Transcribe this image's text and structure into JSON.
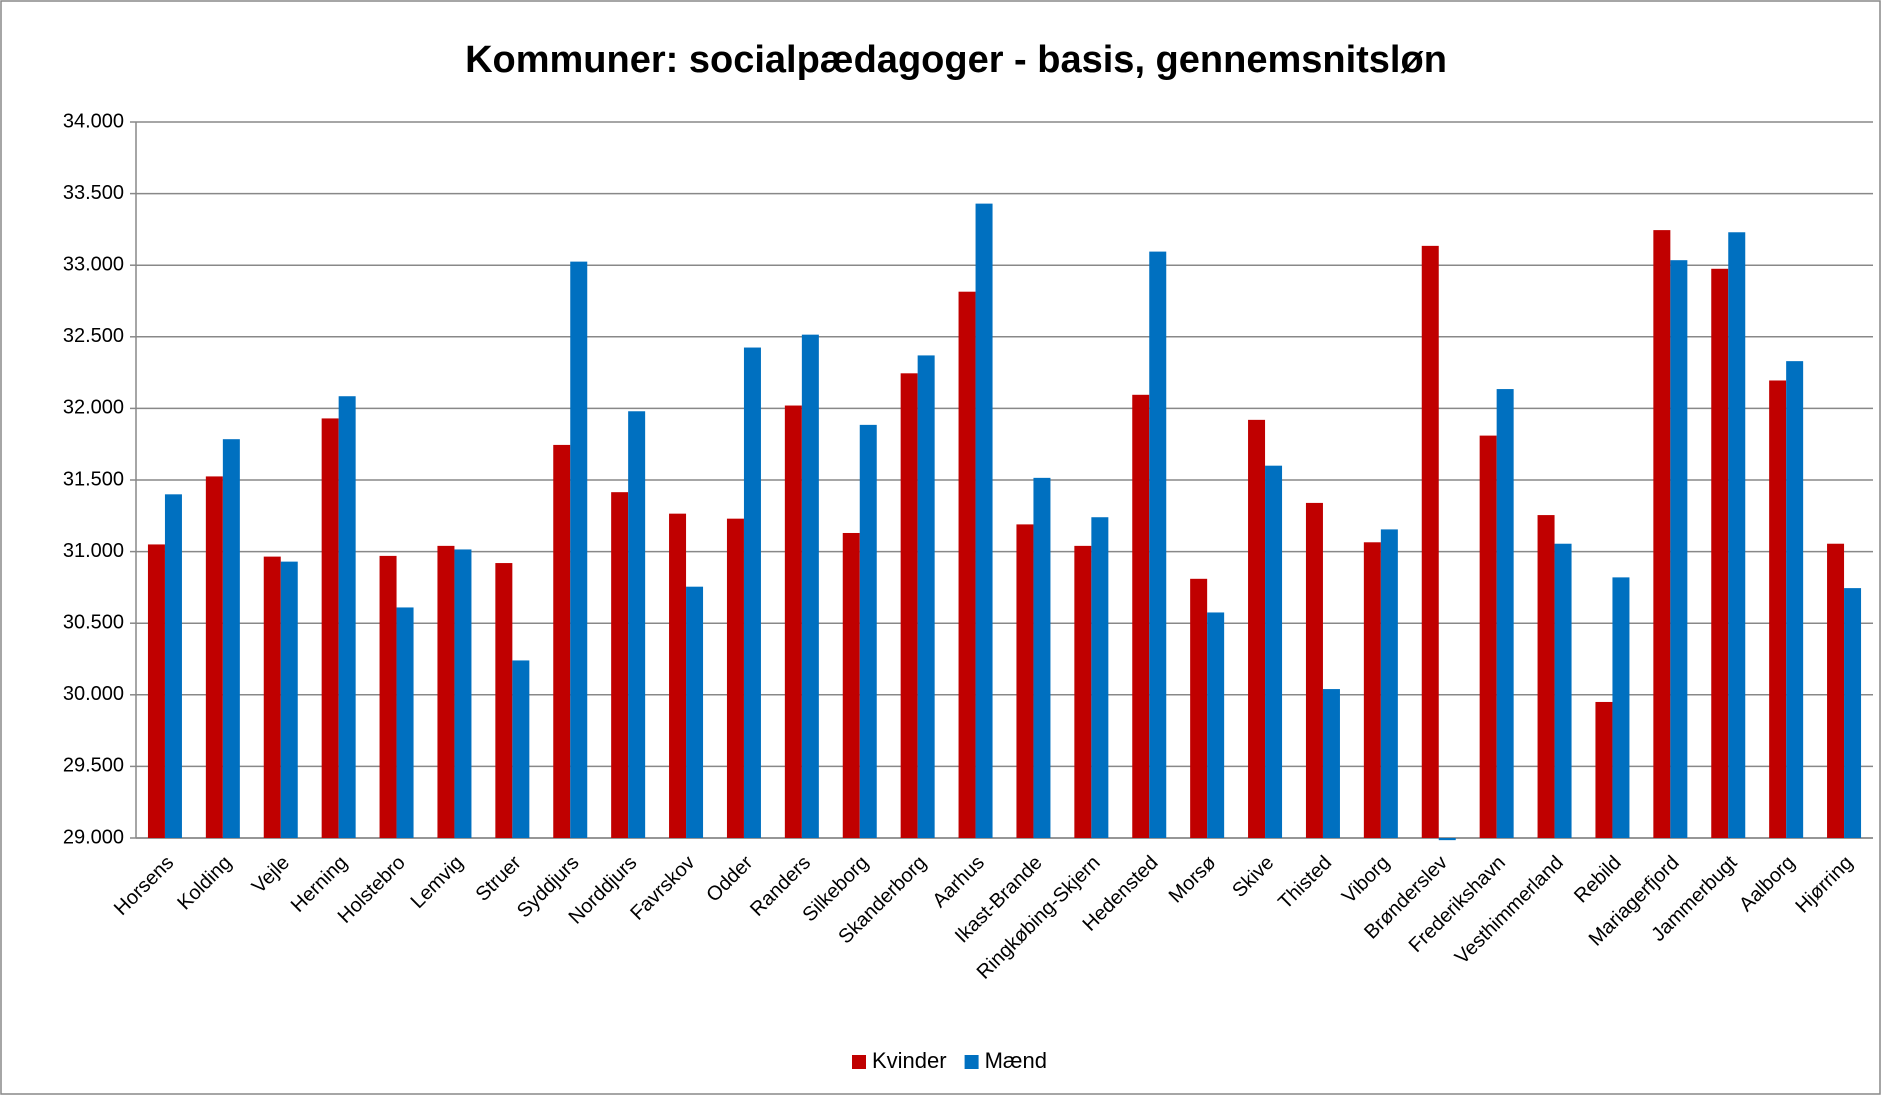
{
  "chart_data": {
    "type": "bar",
    "title": "Kommuner: socialpædagoger - basis, gennemsnitsløn",
    "categories": [
      "Horsens",
      "Kolding",
      "Vejle",
      "Herning",
      "Holstebro",
      "Lemvig",
      "Struer",
      "Syddjurs",
      "Norddjurs",
      "Favrskov",
      "Odder",
      "Randers",
      "Silkeborg",
      "Skanderborg",
      "Aarhus",
      "Ikast-Brande",
      "Ringkøbing-Skjern",
      "Hedensted",
      "Morsø",
      "Skive",
      "Thisted",
      "Viborg",
      "Brønderslev",
      "Frederikshavn",
      "Vesthimmerland",
      "Rebild",
      "Mariagerfjord",
      "Jammerbugt",
      "Aalborg",
      "Hjørring"
    ],
    "series": [
      {
        "name": "Kvinder",
        "color": "#c00000",
        "values": [
          31050,
          31525,
          30965,
          31930,
          30970,
          31040,
          30920,
          31745,
          31415,
          31265,
          31230,
          32020,
          31130,
          32245,
          32815,
          31190,
          31040,
          32095,
          30810,
          31920,
          31340,
          31065,
          33135,
          31810,
          31255,
          29950,
          33245,
          32975,
          32195,
          31055
        ]
      },
      {
        "name": "Mænd",
        "color": "#0070c0",
        "values": [
          31400,
          31785,
          30930,
          32085,
          30610,
          31015,
          30240,
          33025,
          31980,
          30755,
          32425,
          32515,
          31885,
          32370,
          33430,
          31515,
          31240,
          33095,
          30575,
          31600,
          30040,
          31155,
          28985,
          32135,
          31055,
          30820,
          33035,
          33230,
          32330,
          30745
        ]
      }
    ],
    "ylim": [
      29000,
      34000
    ],
    "yticks": [
      {
        "value": 29000,
        "label": "29.000"
      },
      {
        "value": 29500,
        "label": "29.500"
      },
      {
        "value": 30000,
        "label": "30.000"
      },
      {
        "value": 30500,
        "label": "30.500"
      },
      {
        "value": 31000,
        "label": "31.000"
      },
      {
        "value": 31500,
        "label": "31.500"
      },
      {
        "value": 32000,
        "label": "32.000"
      },
      {
        "value": 32500,
        "label": "32.500"
      },
      {
        "value": 33000,
        "label": "33.000"
      },
      {
        "value": 33500,
        "label": "33.500"
      },
      {
        "value": 34000,
        "label": "34.000"
      }
    ],
    "grid": true,
    "legend": "bottom"
  }
}
